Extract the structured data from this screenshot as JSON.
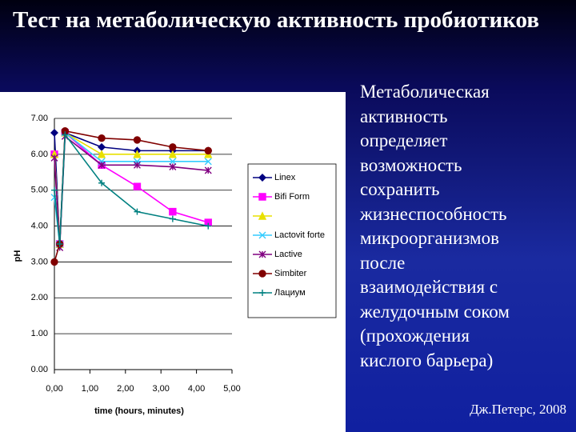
{
  "header": {
    "title": "Тест на метаболическую активность пробиотиков"
  },
  "chart_data": {
    "type": "line",
    "x": [
      0,
      0.15,
      0.3,
      1.33,
      2.33,
      3.33,
      4.33
    ],
    "series": [
      {
        "name": "Linex",
        "color": "#000080",
        "marker": "diamond",
        "values": [
          6.6,
          3.5,
          6.6,
          6.2,
          6.1,
          6.1,
          6.1
        ]
      },
      {
        "name": "Bifi Form",
        "color": "#ff00ff",
        "marker": "square",
        "values": [
          6.0,
          3.5,
          6.6,
          5.7,
          5.1,
          4.4,
          4.1
        ]
      },
      {
        "name": null,
        "color": "#e8e000",
        "marker": "triangle",
        "values": [
          6.0,
          3.5,
          6.6,
          6.0,
          6.0,
          6.0,
          6.0
        ]
      },
      {
        "name": "Lactovit forte",
        "color": "#33ccff",
        "marker": "x",
        "values": [
          4.8,
          3.5,
          6.6,
          5.8,
          5.8,
          5.8,
          5.8
        ]
      },
      {
        "name": "Lactive",
        "color": "#800080",
        "marker": "star",
        "values": [
          5.9,
          3.4,
          6.5,
          5.7,
          5.7,
          5.65,
          5.55
        ]
      },
      {
        "name": "Simbiter",
        "color": "#800000",
        "marker": "circle",
        "values": [
          3.0,
          3.5,
          6.65,
          6.45,
          6.4,
          6.2,
          6.1
        ]
      },
      {
        "name": "Лациум",
        "color": "#008080",
        "marker": "plus",
        "values": [
          5.0,
          3.5,
          6.55,
          5.2,
          4.4,
          4.2,
          4.0
        ]
      }
    ],
    "xlabel": "time (hours, minutes)",
    "ylabel": "pH",
    "xlim": [
      0,
      5
    ],
    "ylim": [
      0,
      7
    ],
    "xticks": [
      {
        "value": 0,
        "label": "0,00"
      },
      {
        "value": 1,
        "label": "1,00"
      },
      {
        "value": 2,
        "label": "2,00"
      },
      {
        "value": 3,
        "label": "3,00"
      },
      {
        "value": 4,
        "label": "4,00"
      },
      {
        "value": 5,
        "label": "5,00"
      }
    ],
    "yticks": [
      {
        "value": 0,
        "label": "0.00"
      },
      {
        "value": 1,
        "label": "1.00"
      },
      {
        "value": 2,
        "label": "2.00"
      },
      {
        "value": 3,
        "label": "3.00"
      },
      {
        "value": 4,
        "label": "4.00"
      },
      {
        "value": 5,
        "label": "5.00"
      },
      {
        "value": 6,
        "label": "6.00"
      },
      {
        "value": 7,
        "label": "7.00"
      }
    ],
    "grid": true
  },
  "body": {
    "lines": [
      "Метаболическая",
      "активность",
      "определяет",
      "возможность",
      "сохранить",
      "жизнеспособность",
      "микроорганизмов",
      "после",
      "взаимодействия с",
      "желудочным соком",
      "(прохождения",
      "кислого барьера)"
    ]
  },
  "citation": "Дж.Петерс, 2008"
}
